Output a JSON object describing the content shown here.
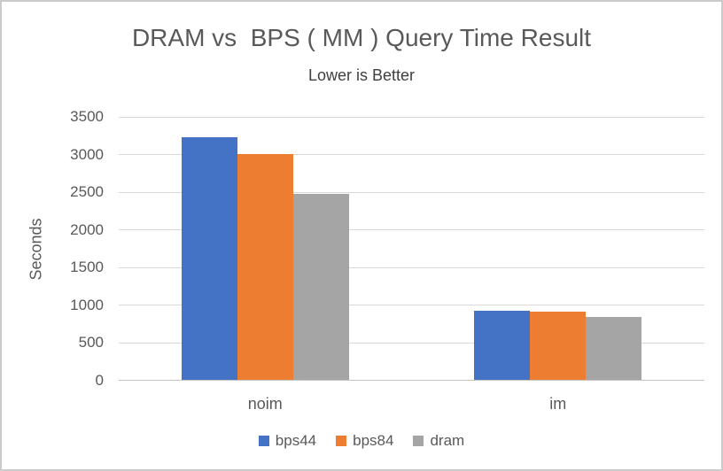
{
  "window": {
    "background": "#ffffff",
    "border_color": "#cbcbcb"
  },
  "chart_data": {
    "type": "bar",
    "title": "DRAM vs  BPS ( MM ) Query Time Result",
    "subtitle": "Lower is Better",
    "xlabel": "",
    "ylabel": "Seconds",
    "categories": [
      "noim",
      "im"
    ],
    "series": [
      {
        "name": "bps44",
        "color": "#4472C4",
        "values": [
          3230,
          920
        ]
      },
      {
        "name": "bps84",
        "color": "#ED7D31",
        "values": [
          3010,
          905
        ]
      },
      {
        "name": "dram",
        "color": "#A5A5A5",
        "values": [
          2480,
          840
        ]
      }
    ],
    "ylim": [
      0,
      3500
    ],
    "ytick_step": 500,
    "grid": true,
    "legend_position": "bottom",
    "text_color": "#595959",
    "gridline_color": "#d9d9d9"
  }
}
